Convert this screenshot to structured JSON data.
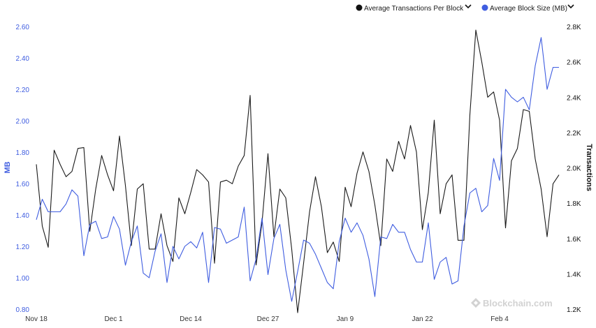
{
  "chart_data": {
    "type": "line",
    "x": [
      "Nov 18",
      "Nov 19",
      "Nov 20",
      "Nov 21",
      "Nov 22",
      "Nov 23",
      "Nov 24",
      "Nov 25",
      "Nov 26",
      "Nov 27",
      "Nov 28",
      "Nov 29",
      "Nov 30",
      "Dec 1",
      "Dec 2",
      "Dec 3",
      "Dec 4",
      "Dec 5",
      "Dec 6",
      "Dec 7",
      "Dec 8",
      "Dec 9",
      "Dec 10",
      "Dec 11",
      "Dec 12",
      "Dec 13",
      "Dec 14",
      "Dec 15",
      "Dec 16",
      "Dec 17",
      "Dec 18",
      "Dec 19",
      "Dec 20",
      "Dec 21",
      "Dec 22",
      "Dec 23",
      "Dec 24",
      "Dec 25",
      "Dec 26",
      "Dec 27",
      "Dec 28",
      "Dec 29",
      "Dec 30",
      "Dec 31",
      "Jan 1",
      "Jan 2",
      "Jan 3",
      "Jan 4",
      "Jan 5",
      "Jan 6",
      "Jan 7",
      "Jan 8",
      "Jan 9",
      "Jan 10",
      "Jan 11",
      "Jan 12",
      "Jan 13",
      "Jan 14",
      "Jan 15",
      "Jan 16",
      "Jan 17",
      "Jan 18",
      "Jan 19",
      "Jan 20",
      "Jan 21",
      "Jan 22",
      "Jan 23",
      "Jan 24",
      "Jan 25",
      "Jan 26",
      "Jan 27",
      "Jan 28",
      "Jan 29",
      "Jan 30",
      "Jan 31",
      "Feb 1",
      "Feb 2",
      "Feb 3",
      "Feb 4",
      "Feb 5",
      "Feb 6",
      "Feb 7",
      "Feb 8",
      "Feb 9",
      "Feb 10",
      "Feb 11",
      "Feb 12",
      "Feb 13",
      "Feb 14"
    ],
    "x_ticks": [
      "Nov 18",
      "Dec 1",
      "Dec 14",
      "Dec 27",
      "Jan 9",
      "Jan 22",
      "Feb 4"
    ],
    "left_axis": {
      "label": "MB",
      "ticks": [
        "0.80",
        "1.00",
        "1.20",
        "1.40",
        "1.60",
        "1.80",
        "2.00",
        "2.20",
        "2.40",
        "2.60"
      ],
      "range": [
        0.8,
        2.6
      ]
    },
    "right_axis": {
      "label": "Transactions",
      "ticks": [
        "1.2K",
        "1.4K",
        "1.6K",
        "1.8K",
        "2.0K",
        "2.2K",
        "2.4K",
        "2.6K",
        "2.8K"
      ],
      "range": [
        1200,
        2800
      ]
    },
    "series": [
      {
        "name": "Average Transactions Per Block",
        "axis": "right",
        "color": "#1a1a1a",
        "values": [
          2020,
          1670,
          1550,
          2100,
          2020,
          1950,
          1980,
          2110,
          2115,
          1640,
          1880,
          2070,
          1960,
          1870,
          2180,
          1900,
          1560,
          1880,
          1910,
          1540,
          1540,
          1740,
          1560,
          1470,
          1830,
          1740,
          1860,
          1990,
          1960,
          1920,
          1460,
          1920,
          1930,
          1910,
          2010,
          2070,
          2410,
          1450,
          1690,
          2080,
          1610,
          1880,
          1830,
          1540,
          1180,
          1460,
          1750,
          1950,
          1780,
          1520,
          1580,
          1470,
          1890,
          1780,
          1970,
          2090,
          1980,
          1790,
          1560,
          2050,
          1980,
          2150,
          2050,
          2240,
          2090,
          1650,
          1860,
          2270,
          1740,
          1910,
          1960,
          1590,
          1590,
          2300,
          2780,
          2600,
          2400,
          2430,
          2270,
          1660,
          2040,
          2110,
          2330,
          2320,
          2050,
          1880,
          1610,
          1910,
          1960
        ]
      },
      {
        "name": "Average Block Size (MB)",
        "axis": "left",
        "color": "#3f5de0",
        "values": [
          1.37,
          1.5,
          1.42,
          1.42,
          1.42,
          1.47,
          1.56,
          1.52,
          1.14,
          1.34,
          1.36,
          1.25,
          1.26,
          1.39,
          1.31,
          1.08,
          1.23,
          1.33,
          1.03,
          1.0,
          1.17,
          1.28,
          0.97,
          1.2,
          1.12,
          1.2,
          1.23,
          1.19,
          1.29,
          0.97,
          1.32,
          1.31,
          1.22,
          1.24,
          1.26,
          1.45,
          0.98,
          1.12,
          1.38,
          1.02,
          1.25,
          1.34,
          1.05,
          0.85,
          1.04,
          1.24,
          1.22,
          1.15,
          1.06,
          0.97,
          0.93,
          1.23,
          1.38,
          1.29,
          1.35,
          1.27,
          1.12,
          0.88,
          1.26,
          1.25,
          1.34,
          1.29,
          1.29,
          1.18,
          1.1,
          1.1,
          1.35,
          0.99,
          1.1,
          1.13,
          0.96,
          0.98,
          1.33,
          1.54,
          1.57,
          1.42,
          1.46,
          1.76,
          1.62,
          2.2,
          2.15,
          2.12,
          2.15,
          2.07,
          2.35,
          2.53,
          2.2,
          2.34,
          2.34
        ]
      }
    ],
    "legend_position": "top-right",
    "grid": false,
    "watermark": "Blockchain.com"
  }
}
